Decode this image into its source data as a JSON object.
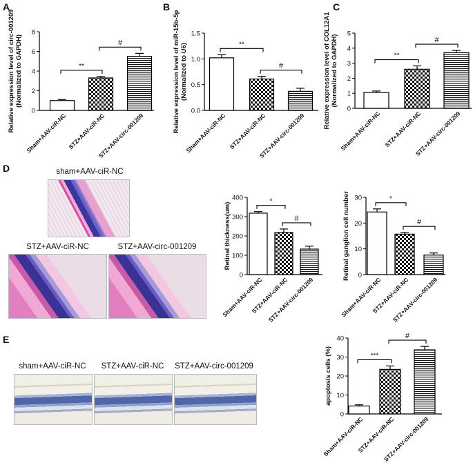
{
  "panels": {
    "A": "A",
    "B": "B",
    "C": "C",
    "D": "D",
    "E": "E"
  },
  "micrographs": {
    "d_top": "sham+AAV-ciR-NC",
    "d_left": "STZ+AAV-ciR-NC",
    "d_right": "STZ+AAV-circ-001209",
    "e_1": "sham+AAV-ciR-NC",
    "e_2": "STZ+AAV-ciR-NC",
    "e_3": "STZ+AAV-circ-001209"
  },
  "colors": {
    "axis": "#000000",
    "bar_edge": "#000000",
    "bar_fill": "#ffffff"
  },
  "chart_data": [
    {
      "id": "A",
      "type": "bar",
      "categories": [
        "Sham+AAV-ciR-NC",
        "STZ+AAV-ciR-NC",
        "STZ+AAV-circ-001209"
      ],
      "values": [
        1.0,
        3.3,
        5.5
      ],
      "errors": [
        0.1,
        0.15,
        0.3
      ],
      "patterns": [
        "none",
        "check",
        "hlines"
      ],
      "ylabel": [
        "Relative expression level of circ-001209",
        "(Normalized to GAPDH)"
      ],
      "ylim": [
        0,
        8
      ],
      "yticks": [
        0,
        2,
        4,
        6,
        8
      ],
      "sig": [
        {
          "from": 0,
          "to": 1,
          "label": "**"
        },
        {
          "from": 1,
          "to": 2,
          "label": "#"
        }
      ]
    },
    {
      "id": "B",
      "type": "bar",
      "categories": [
        "Sham+AAV-ciR-NC",
        "STZ+AAV-ciR-NC",
        "STZ+AAV-circ-001209"
      ],
      "values": [
        1.02,
        0.61,
        0.37
      ],
      "errors": [
        0.06,
        0.05,
        0.06
      ],
      "patterns": [
        "none",
        "check",
        "hlines"
      ],
      "ylabel": [
        "Relative expression level of miR-15b-5p",
        "(Normalized to U6)"
      ],
      "ylim": [
        0,
        1.5
      ],
      "yticks": [
        0.0,
        0.5,
        1.0,
        1.5
      ],
      "ytick_labels": [
        "0.0",
        "0.5",
        "1.0",
        "1.5"
      ],
      "sig": [
        {
          "from": 0,
          "to": 1,
          "label": "**"
        },
        {
          "from": 1,
          "to": 2,
          "label": "#"
        }
      ]
    },
    {
      "id": "C",
      "type": "bar",
      "categories": [
        "Sham+AAV-ciR-NC",
        "STZ+AAV-ciR-NC",
        "STZ+AAV-circ-001209"
      ],
      "values": [
        1.05,
        2.6,
        3.7
      ],
      "errors": [
        0.1,
        0.22,
        0.15
      ],
      "patterns": [
        "none",
        "check",
        "hlines"
      ],
      "ylabel": [
        "Relative expression level of COL12A1",
        "(Normalized to GAPDH)"
      ],
      "ylim": [
        0,
        5
      ],
      "yticks": [
        0,
        1,
        2,
        3,
        4,
        5
      ],
      "sig": [
        {
          "from": 0,
          "to": 1,
          "label": "**"
        },
        {
          "from": 1,
          "to": 2,
          "label": "#"
        }
      ]
    },
    {
      "id": "D1",
      "type": "bar",
      "categories": [
        "Sham+AAV-ciR-NC",
        "STZ+AAV-ciR-NC",
        "STZ+AAV-circ-001209"
      ],
      "values": [
        318,
        218,
        132
      ],
      "errors": [
        8,
        18,
        15
      ],
      "patterns": [
        "none",
        "check",
        "hlines"
      ],
      "ylabel": [
        "Retinal thickness(um)"
      ],
      "ylim": [
        0,
        400
      ],
      "yticks": [
        0,
        100,
        200,
        300,
        400
      ],
      "sig": [
        {
          "from": 0,
          "to": 1,
          "label": "*"
        },
        {
          "from": 1,
          "to": 2,
          "label": "#"
        }
      ]
    },
    {
      "id": "D2",
      "type": "bar",
      "categories": [
        "Sham+AAV-ciR-NC",
        "STZ+AAV-ciR-NC",
        "STZ+AAV-circ-001209"
      ],
      "values": [
        24.3,
        15.7,
        7.6
      ],
      "errors": [
        1.2,
        0.6,
        0.8
      ],
      "patterns": [
        "none",
        "check",
        "hlines"
      ],
      "ylabel": [
        "Retinal ganglion cell number"
      ],
      "ylim": [
        0,
        30
      ],
      "yticks": [
        0,
        10,
        20,
        30
      ],
      "sig": [
        {
          "from": 0,
          "to": 1,
          "label": "*"
        },
        {
          "from": 1,
          "to": 2,
          "label": "#"
        }
      ]
    },
    {
      "id": "E",
      "type": "bar",
      "categories": [
        "Sham+AAV-ciR-NC",
        "STZ+AAV-ciR-NC",
        "STZ+AAV-circ-001209"
      ],
      "values": [
        4.2,
        23.5,
        33.8
      ],
      "errors": [
        0.6,
        1.8,
        1.8
      ],
      "patterns": [
        "none",
        "check",
        "hlines"
      ],
      "ylabel": [
        "apoptosis cells (%)"
      ],
      "ylim": [
        0,
        40
      ],
      "yticks": [
        0,
        10,
        20,
        30,
        40
      ],
      "sig": [
        {
          "from": 0,
          "to": 1,
          "label": "***"
        },
        {
          "from": 1,
          "to": 2,
          "label": "#"
        }
      ]
    }
  ]
}
